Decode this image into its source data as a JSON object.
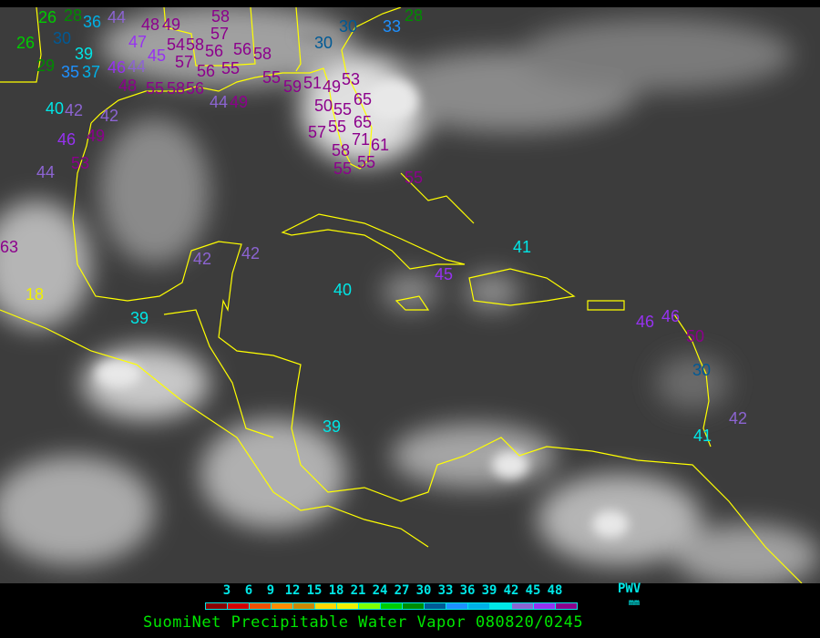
{
  "caption": "SuomiNet Precipitable Water Vapor 080820/0245",
  "legend": {
    "unit_name": "PWV",
    "unit": "mm",
    "ticks": [
      "3",
      "6",
      "9",
      "12",
      "15",
      "18",
      "21",
      "24",
      "27",
      "30",
      "33",
      "36",
      "39",
      "42",
      "45",
      "48"
    ],
    "colors": [
      "#8b0000",
      "#d40000",
      "#f05000",
      "#ff8c00",
      "#cc8800",
      "#ffd700",
      "#f0f000",
      "#80ff00",
      "#00cc00",
      "#008c00",
      "#005a96",
      "#1e90ff",
      "#00b0e6",
      "#00e6e6",
      "#8c64d2",
      "#9632f0",
      "#8c008c"
    ]
  },
  "map": {
    "background": "#3c3c3c",
    "coastline_color": "#ffff00"
  },
  "stations": [
    "26",
    "28",
    "36",
    "44",
    "26",
    "30",
    "39",
    "29",
    "35",
    "37",
    "46",
    "44",
    "45",
    "48",
    "49",
    "47",
    "54",
    "57",
    "58",
    "56",
    "56",
    "57",
    "58",
    "55",
    "56",
    "58",
    "48",
    "55",
    "58",
    "56",
    "40",
    "42",
    "42",
    "49",
    "46",
    "53",
    "44",
    "44",
    "49",
    "55",
    "59",
    "51",
    "49",
    "50",
    "55",
    "65",
    "53",
    "55",
    "57",
    "65",
    "71",
    "61",
    "58",
    "55",
    "55",
    "55",
    "30",
    "30",
    "33",
    "28",
    "42",
    "42",
    "18",
    "63",
    "39",
    "40",
    "45",
    "41",
    "39",
    "46",
    "46",
    "50",
    "30",
    "42",
    "41"
  ]
}
